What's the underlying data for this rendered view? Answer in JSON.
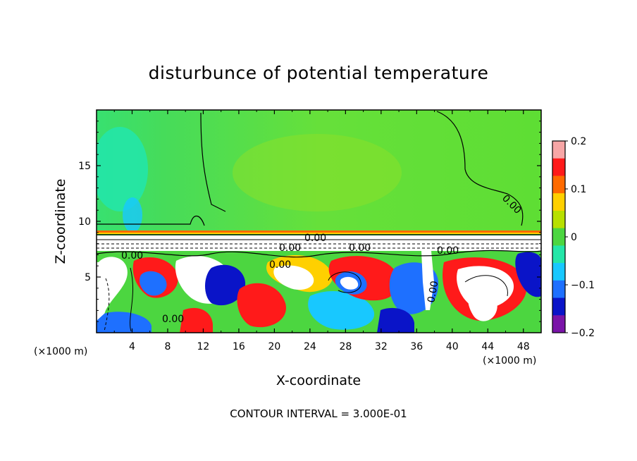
{
  "chart_data": {
    "type": "heatmap",
    "title": "disturbunce of potential temperature",
    "xlabel": "X-coordinate",
    "ylabel": "Z-coordinate",
    "x_unit_label": "(×1000 m)",
    "xlim": [
      0,
      50
    ],
    "ylim": [
      0,
      20
    ],
    "x_ticks": [
      "4",
      "8",
      "12",
      "16",
      "20",
      "24",
      "28",
      "32",
      "36",
      "40",
      "44",
      "48"
    ],
    "y_ticks": [
      "5",
      "10",
      "15"
    ],
    "colorbar": {
      "range": [
        -0.2,
        0.2
      ],
      "ticks": [
        "0.2",
        "0.1",
        "0",
        "−0.1",
        "−0.2"
      ],
      "colors": [
        "#f7a6a6",
        "#ff1a1a",
        "#ff6a00",
        "#ffd000",
        "#b8e000",
        "#4cd640",
        "#24e6a8",
        "#18c8ff",
        "#1e70ff",
        "#0a14c8",
        "#7a14a8"
      ]
    },
    "contour_labels": [
      "0.00",
      "0.00",
      "0.00",
      "0.00",
      "0.00",
      "0.00",
      "0.00",
      "0.00",
      "0.00"
    ],
    "contour_interval_text": "CONTOUR INTERVAL = 3.000E-01",
    "regions": {
      "upper_layer": "near zero (green)",
      "tropopause_band_z": 9,
      "lower_layer": "strong vortical structures, -0.2 to 0.2"
    }
  }
}
